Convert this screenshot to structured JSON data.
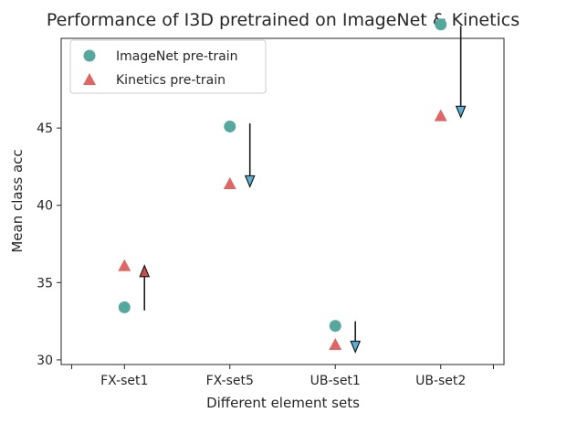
{
  "chart_data": {
    "type": "scatter",
    "title": "Performance of I3D pretrained on ImageNet & Kinetics",
    "xlabel": "Different element sets",
    "ylabel": "Mean class acc",
    "categories": [
      "FX-set1",
      "FX-set5",
      "UB-set1",
      "UB-set2"
    ],
    "xlim": [
      -0.6,
      3.6
    ],
    "ylim": [
      29.7,
      50.8
    ],
    "yticks": [
      30,
      35,
      40,
      45
    ],
    "legend_position": "top-left",
    "series": [
      {
        "name": "ImageNet pre-train",
        "marker": "circle",
        "color": "#56a89e",
        "values": [
          33.4,
          45.1,
          32.2,
          51.7
        ]
      },
      {
        "name": "Kinetics pre-train",
        "marker": "triangle",
        "color": "#e06666",
        "values": [
          36.1,
          41.4,
          31.0,
          45.8
        ]
      }
    ],
    "arrows": [
      {
        "category": "FX-set1",
        "from": 33.2,
        "to": 36.1,
        "direction": "up",
        "head_color": "#cf4f4f"
      },
      {
        "category": "FX-set5",
        "from": 45.3,
        "to": 41.2,
        "direction": "down",
        "head_color": "#5ab0d6"
      },
      {
        "category": "UB-set1",
        "from": 32.5,
        "to": 30.5,
        "direction": "down",
        "head_color": "#5ab0d6"
      },
      {
        "category": "UB-set2",
        "from": 51.6,
        "to": 45.7,
        "direction": "down",
        "head_color": "#5ab0d6"
      }
    ],
    "grid": false
  }
}
